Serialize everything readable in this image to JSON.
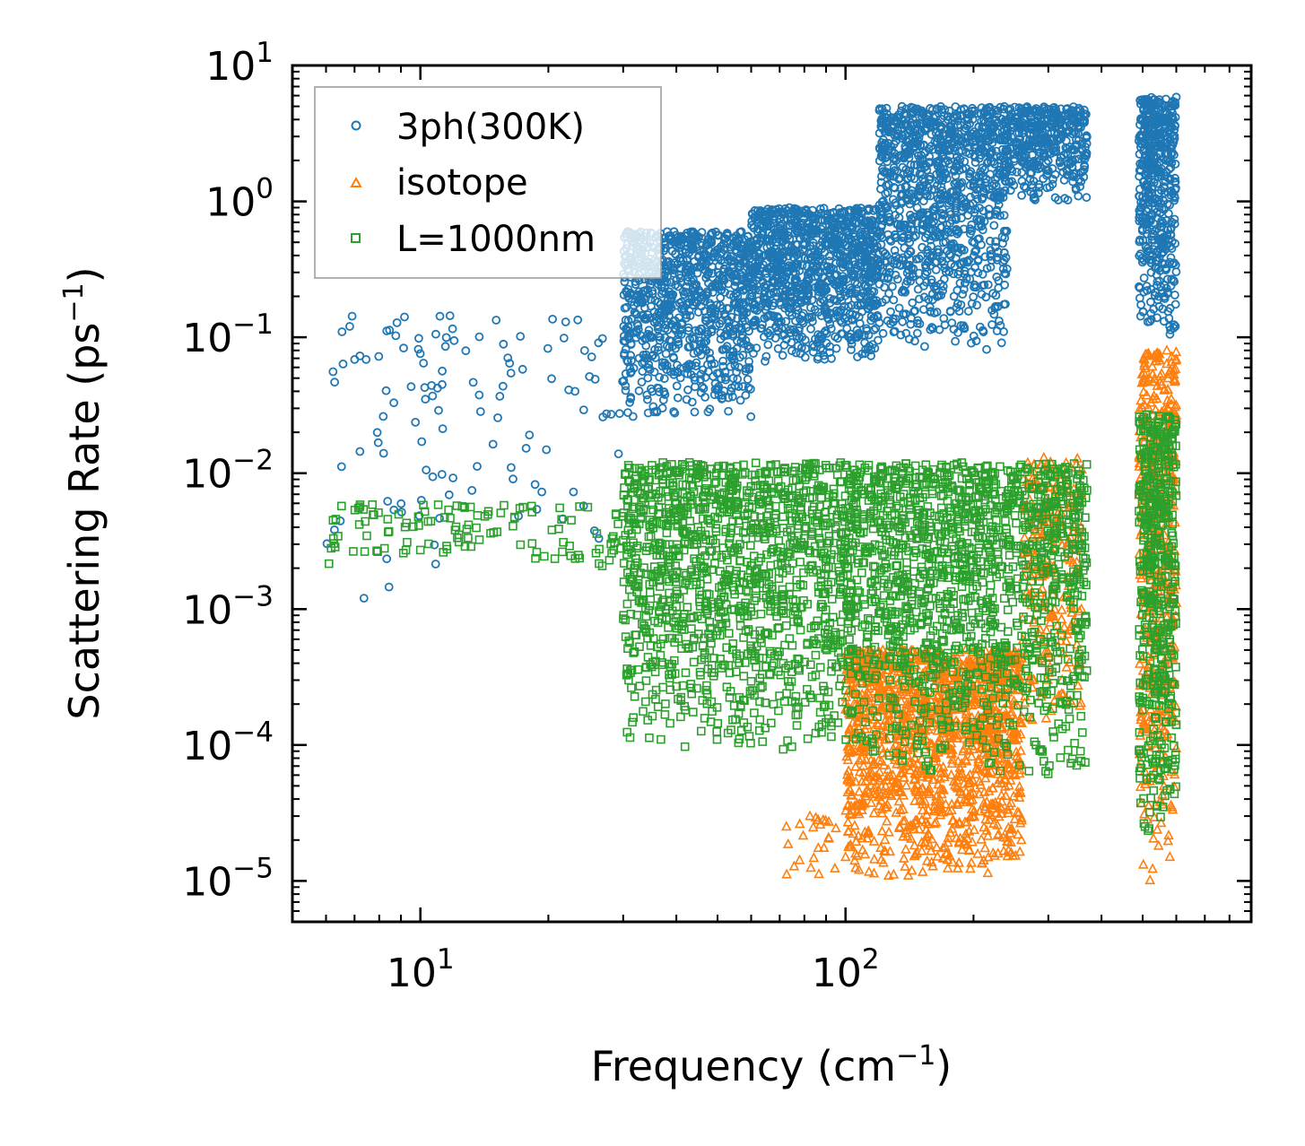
{
  "chart_data": {
    "type": "scatter",
    "title": "",
    "xlabel": "Frequency (cm",
    "xlabel_sup": "−1",
    "xlabel_end": ")",
    "ylabel": "Scattering Rate (ps",
    "ylabel_sup": "−1",
    "ylabel_end": ")",
    "xscale": "log",
    "yscale": "log",
    "xlim": [
      5,
      900
    ],
    "ylim": [
      5e-06,
      10
    ],
    "x_ticks": [
      {
        "base": "10",
        "exp": "1",
        "value": 10
      },
      {
        "base": "10",
        "exp": "2",
        "value": 100
      }
    ],
    "y_ticks": [
      {
        "base": "10",
        "exp": "1",
        "value": 10
      },
      {
        "base": "10",
        "exp": "0",
        "value": 1
      },
      {
        "base": "10",
        "exp": "−1",
        "value": 0.1
      },
      {
        "base": "10",
        "exp": "−2",
        "value": 0.01
      },
      {
        "base": "10",
        "exp": "−3",
        "value": 0.001
      },
      {
        "base": "10",
        "exp": "−4",
        "value": 0.0001
      },
      {
        "base": "10",
        "exp": "−5",
        "value": 1e-05
      }
    ],
    "legend_position": "top-left",
    "series": [
      {
        "name": "3ph(300K)",
        "marker": "circle",
        "color": "#1f77b4",
        "clusters": [
          {
            "x": [
              6,
              30
            ],
            "y": [
              0.001,
              0.15
            ],
            "n": 120
          },
          {
            "x": [
              30,
              60
            ],
            "y": [
              0.025,
              0.6
            ],
            "n": 900
          },
          {
            "x": [
              60,
              120
            ],
            "y": [
              0.06,
              0.9
            ],
            "n": 1000
          },
          {
            "x": [
              120,
              240
            ],
            "y": [
              0.08,
              5.0
            ],
            "n": 1100
          },
          {
            "x": [
              240,
              370
            ],
            "y": [
              1.0,
              5.0
            ],
            "n": 400
          },
          {
            "x": [
              490,
              600
            ],
            "y": [
              0.1,
              6.0
            ],
            "n": 500
          }
        ]
      },
      {
        "name": "isotope",
        "marker": "triangle",
        "color": "#ff7f0e",
        "clusters": [
          {
            "x": [
              70,
              95
            ],
            "y": [
              1e-05,
              3e-05
            ],
            "n": 25
          },
          {
            "x": [
              100,
              260
            ],
            "y": [
              1e-05,
              0.0005
            ],
            "n": 1400
          },
          {
            "x": [
              260,
              360
            ],
            "y": [
              0.0001,
              0.013
            ],
            "n": 250
          },
          {
            "x": [
              490,
              600
            ],
            "y": [
              1e-05,
              0.08
            ],
            "n": 500
          }
        ]
      },
      {
        "name": "L=1000nm",
        "marker": "square",
        "color": "#2ca02c",
        "clusters": [
          {
            "x": [
              6,
              30
            ],
            "y": [
              0.002,
              0.006
            ],
            "n": 120
          },
          {
            "x": [
              30,
              100
            ],
            "y": [
              8e-05,
              0.012
            ],
            "n": 1300
          },
          {
            "x": [
              100,
              370
            ],
            "y": [
              6e-05,
              0.012
            ],
            "n": 1500
          },
          {
            "x": [
              490,
              600
            ],
            "y": [
              2e-05,
              0.027
            ],
            "n": 500
          }
        ]
      }
    ]
  }
}
